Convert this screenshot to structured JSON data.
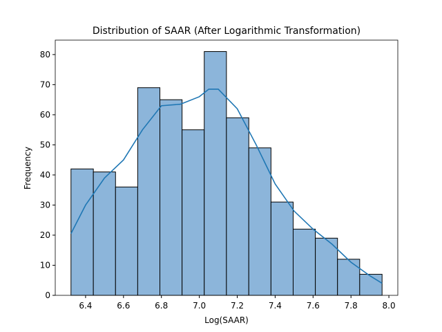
{
  "chart_data": {
    "type": "histogram",
    "title": "Distribution of SAAR (After Logarithmic Transformation)",
    "xlabel": "Log(SAAR)",
    "ylabel": "Frequency",
    "bins": [
      6.323,
      6.441,
      6.558,
      6.675,
      6.792,
      6.909,
      7.026,
      7.143,
      7.261,
      7.378,
      7.495,
      7.612,
      7.729,
      7.846,
      7.964
    ],
    "values": [
      42,
      41,
      36,
      69,
      65,
      55,
      81,
      59,
      49,
      31,
      22,
      19,
      12,
      7
    ],
    "color": "#8cb5da",
    "edgecolor": "#000000",
    "kde": {
      "x": [
        6.323,
        6.4,
        6.5,
        6.6,
        6.7,
        6.8,
        6.9,
        7.0,
        7.05,
        7.1,
        7.2,
        7.3,
        7.4,
        7.5,
        7.6,
        7.7,
        7.8,
        7.9,
        7.964
      ],
      "values": [
        20.5,
        30,
        39,
        45,
        55,
        63,
        63.5,
        66,
        68.5,
        68.5,
        62,
        50,
        37,
        28,
        22,
        17,
        11,
        6.5,
        4
      ],
      "color": "#1f77b4"
    },
    "xlim": [
      6.24,
      8.047
    ],
    "ylim": [
      0,
      84.8
    ],
    "xticks": [
      6.4,
      6.6,
      6.8,
      {
        "value": 7,
        "label": "7.0"
      },
      7.2,
      7.4,
      7.6,
      7.8,
      {
        "value": 8,
        "label": "8.0"
      }
    ],
    "yticks": [
      0,
      10,
      20,
      30,
      40,
      50,
      60,
      70,
      80
    ]
  }
}
